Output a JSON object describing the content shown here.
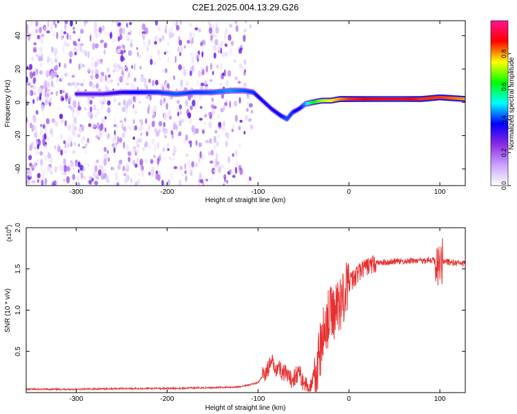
{
  "title": "C2E1.2025.004.13.29.G26",
  "chart_data": [
    {
      "type": "heatmap",
      "xlabel": "Height of straight line (km)",
      "ylabel": "Frequency (Hz)",
      "xlim": [
        -355,
        128
      ],
      "ylim": [
        -50,
        49
      ],
      "xticks": [
        -300,
        -200,
        -100,
        0,
        100
      ],
      "yticks": [
        -40,
        -20,
        0,
        20,
        40
      ],
      "colorbar": {
        "label": "Normalized spectral amplitude",
        "range": [
          0,
          1
        ],
        "ticks": [
          "0.0",
          "0.2",
          "0.4",
          "0.6",
          "0.8"
        ],
        "colors": [
          "#ffffff",
          "#c9a3ff",
          "#8a2be2",
          "#0000ff",
          "#00ffff",
          "#00ff00",
          "#ffff00",
          "#ff0000",
          "#ff1493"
        ]
      },
      "ridge": {
        "x": [
          -300,
          -270,
          -250,
          -230,
          -210,
          -190,
          -170,
          -150,
          -130,
          -115,
          -105,
          -95,
          -85,
          -75,
          -68,
          -62,
          -55,
          -48,
          -40,
          -30,
          -20,
          -10,
          0,
          20,
          40,
          60,
          80,
          100,
          128
        ],
        "freq": [
          5,
          5,
          6,
          6,
          6,
          5,
          6,
          6,
          7,
          7,
          6,
          1,
          -4,
          -8,
          -10,
          -6,
          -4,
          -1,
          0,
          1,
          1,
          2,
          2,
          2,
          2,
          2,
          2,
          3,
          2
        ],
        "amplitude": [
          0.3,
          0.3,
          0.35,
          0.38,
          0.4,
          0.42,
          0.4,
          0.42,
          0.45,
          0.42,
          0.4,
          0.35,
          0.35,
          0.38,
          0.42,
          0.4,
          0.35,
          0.45,
          0.6,
          0.7,
          0.75,
          0.8,
          0.85,
          0.88,
          0.9,
          0.9,
          0.85,
          0.85,
          0.8
        ]
      },
      "noise_x_range": [
        -355,
        -105
      ]
    },
    {
      "type": "line",
      "xlabel": "Height of straight line (km)",
      "ylabel": "SNR (10 * v/v)",
      "y_multiplier": "(x10^4)",
      "y_multiplier_base": "(x10",
      "y_multiplier_exp": "4",
      "y_multiplier_close": ")",
      "xlim": [
        -355,
        128
      ],
      "ylim": [
        0,
        2.0
      ],
      "xticks": [
        -300,
        -200,
        -100,
        0,
        100
      ],
      "yticks": [
        0.5,
        1.0,
        1.5,
        2.0
      ],
      "ytick_labels": [
        "0.5",
        "1.0",
        "1.5",
        "2.0"
      ],
      "series": [
        {
          "color": "#e83030",
          "x": [
            -355,
            -300,
            -250,
            -200,
            -150,
            -120,
            -100,
            -90,
            -85,
            -80,
            -75,
            -70,
            -65,
            -60,
            -55,
            -50,
            -45,
            -40,
            -35,
            -30,
            -25,
            -20,
            -15,
            -10,
            -5,
            0,
            10,
            20,
            30,
            40,
            50,
            60,
            70,
            80,
            90,
            95,
            100,
            105,
            110,
            120,
            128
          ],
          "y": [
            0.04,
            0.04,
            0.05,
            0.05,
            0.06,
            0.07,
            0.12,
            0.28,
            0.35,
            0.32,
            0.28,
            0.22,
            0.15,
            0.2,
            0.25,
            0.12,
            0.06,
            0.1,
            0.3,
            0.6,
            0.85,
            0.95,
            1.0,
            1.1,
            1.2,
            1.32,
            1.45,
            1.53,
            1.57,
            1.58,
            1.59,
            1.59,
            1.6,
            1.6,
            1.61,
            1.6,
            1.58,
            1.6,
            1.58,
            1.57,
            1.56
          ]
        }
      ]
    }
  ]
}
